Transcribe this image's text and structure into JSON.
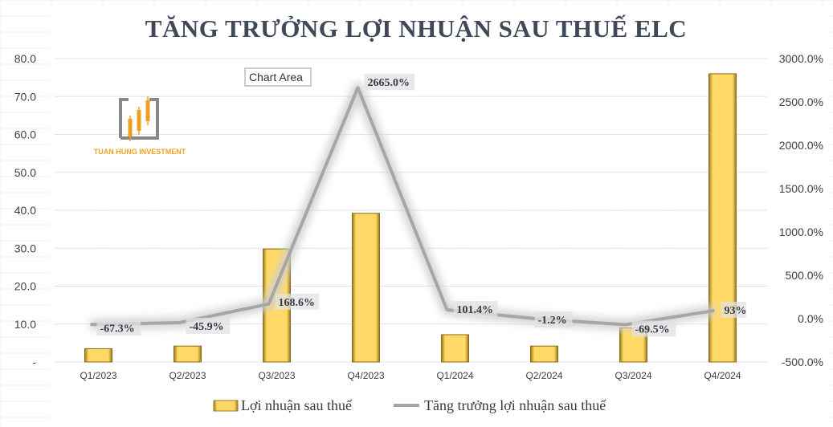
{
  "chart_data": {
    "type": "bar",
    "title": "TĂNG TRƯỞNG LỢI NHUẬN SAU THUẾ ELC",
    "categories": [
      "Q1/2023",
      "Q2/2023",
      "Q3/2023",
      "Q4/2023",
      "Q1/2024",
      "Q2/2024",
      "Q3/2024",
      "Q4/2024"
    ],
    "series": [
      {
        "name": "Lợi nhuận sau thuế",
        "kind": "bar",
        "axis": "left",
        "color": "#ffd966",
        "values": [
          3.5,
          4.2,
          29.8,
          39.2,
          7.2,
          4.2,
          9.0,
          76.0
        ]
      },
      {
        "name": "Tăng trưởng lợi nhuận sau thuế",
        "kind": "line",
        "axis": "right",
        "color": "#a6a6a6",
        "values": [
          -67.3,
          -45.9,
          168.6,
          2665.0,
          101.4,
          -1.2,
          -69.5,
          93.0
        ],
        "labels": [
          "-67.3%",
          "-45.9%",
          "168.6%",
          "2665.0%",
          "101.4%",
          "-1.2%",
          "-69.5%",
          "93%"
        ]
      }
    ],
    "y_left": {
      "min": 0,
      "max": 80,
      "step": 10,
      "tick_labels": [
        "-",
        "10.0",
        "20.0",
        "30.0",
        "40.0",
        "50.0",
        "60.0",
        "70.0",
        "80.0"
      ]
    },
    "y_right": {
      "min": -500,
      "max": 3000,
      "step": 500,
      "tick_labels": [
        "-500.0%",
        "0.0%",
        "500.0%",
        "1000.0%",
        "1500.0%",
        "2000.0%",
        "2500.0%",
        "3000.0%"
      ]
    },
    "grid": true,
    "legend": "bottom"
  },
  "tooltip": "Chart Area",
  "logo": {
    "text": "TUAN HUNG INVESTMENT"
  }
}
